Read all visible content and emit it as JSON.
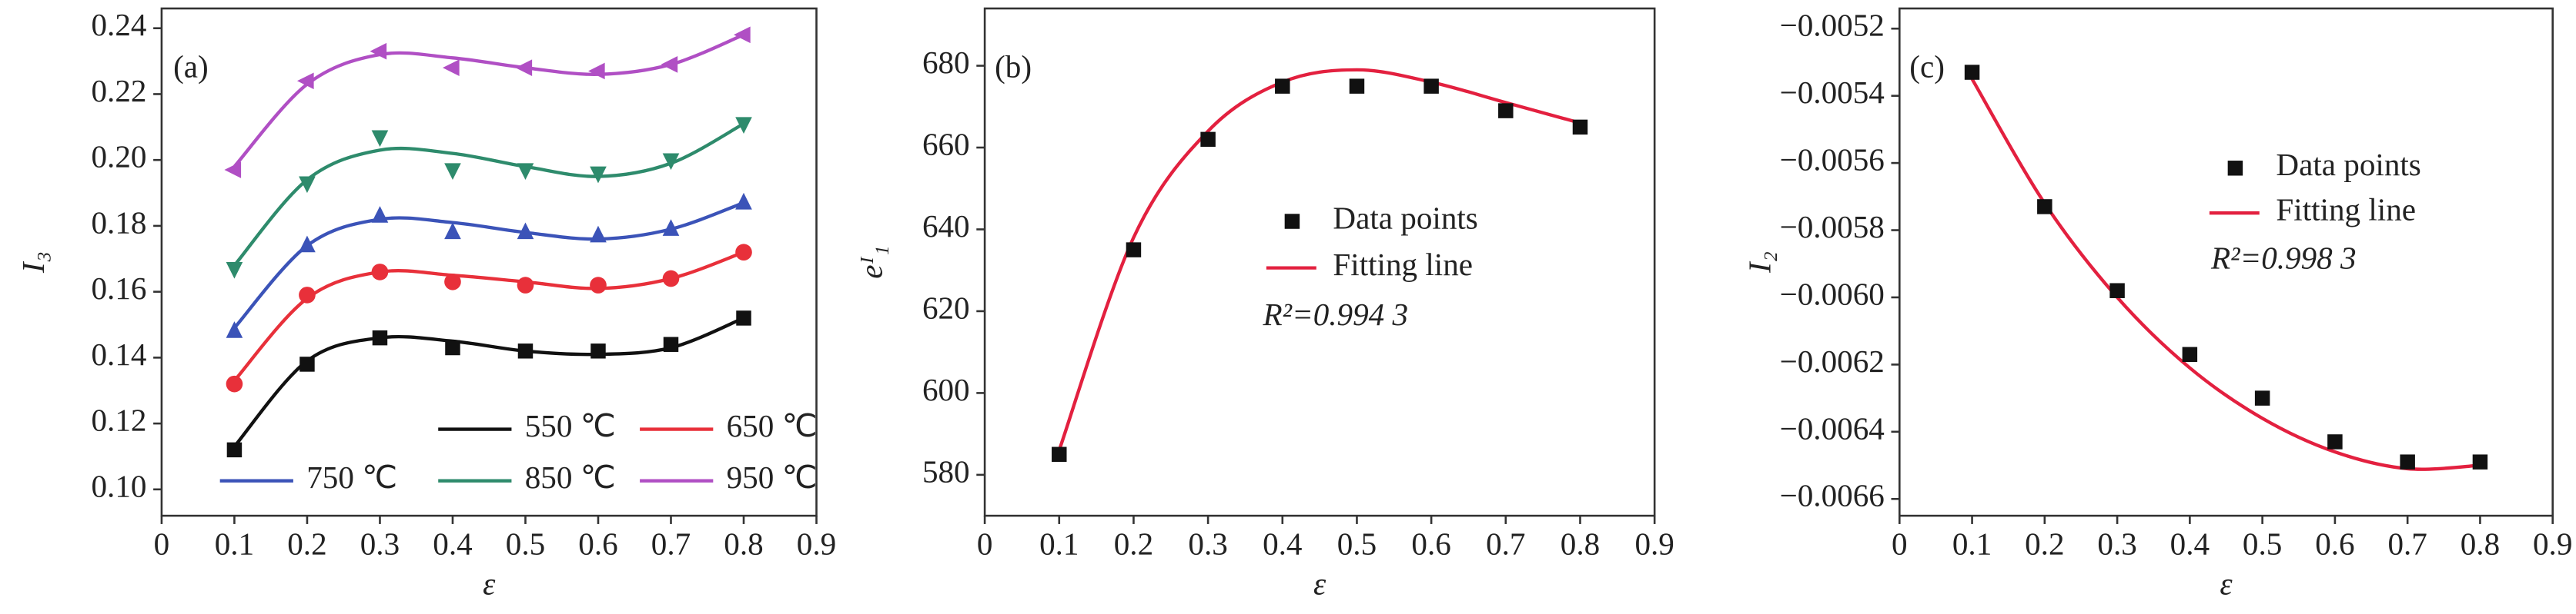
{
  "chart_data": [
    {
      "type": "line",
      "annotation": "(a)",
      "xlabel": "ε",
      "ylabel": "I₃",
      "x": [
        0.1,
        0.2,
        0.3,
        0.4,
        0.5,
        0.6,
        0.7,
        0.8
      ],
      "xlim": [
        0,
        0.9
      ],
      "xticks": [
        0,
        0.1,
        0.2,
        0.3,
        0.4,
        0.5,
        0.6,
        0.7,
        0.8,
        0.9
      ],
      "ylim": [
        0.092,
        0.246
      ],
      "yticks": [
        {
          "value": 0.1,
          "label": "0.10"
        },
        0.12,
        0.14,
        0.16,
        0.18,
        {
          "value": 0.2,
          "label": "0.20"
        },
        0.22,
        0.24
      ],
      "series": [
        {
          "name": "550 ℃",
          "color": "#111111",
          "marker": "square",
          "values": [
            0.112,
            0.138,
            0.146,
            0.143,
            0.142,
            0.142,
            0.144,
            0.152
          ],
          "fit": [
            0.113,
            0.139,
            0.146,
            0.145,
            0.142,
            0.141,
            0.143,
            0.152
          ]
        },
        {
          "name": "650 ℃",
          "color": "#e8303a",
          "marker": "circle",
          "values": [
            0.132,
            0.159,
            0.166,
            0.163,
            0.162,
            0.162,
            0.164,
            0.172
          ],
          "fit": [
            0.133,
            0.158,
            0.166,
            0.165,
            0.163,
            0.161,
            0.164,
            0.172
          ]
        },
        {
          "name": "750 ℃",
          "color": "#3b53b8",
          "marker": "triangle-up",
          "values": [
            0.148,
            0.174,
            0.183,
            0.178,
            0.178,
            0.177,
            0.179,
            0.187
          ],
          "fit": [
            0.149,
            0.174,
            0.182,
            0.181,
            0.178,
            0.176,
            0.179,
            0.187
          ]
        },
        {
          "name": "850 ℃",
          "color": "#2e8b6c",
          "marker": "triangle-down",
          "values": [
            0.167,
            0.193,
            0.207,
            0.197,
            0.197,
            0.196,
            0.2,
            0.211
          ],
          "fit": [
            0.168,
            0.194,
            0.203,
            0.202,
            0.198,
            0.195,
            0.199,
            0.211
          ]
        },
        {
          "name": "950 ℃",
          "color": "#b04fc4",
          "marker": "triangle-left",
          "values": [
            0.197,
            0.224,
            0.233,
            0.228,
            0.228,
            0.227,
            0.229,
            0.238
          ],
          "fit": [
            0.198,
            0.223,
            0.232,
            0.231,
            0.228,
            0.226,
            0.229,
            0.238
          ]
        }
      ]
    },
    {
      "type": "line",
      "annotation": "(b)",
      "xlabel": "ε",
      "ylabel": "eᴵ₁",
      "r2": "R²=0.994 3",
      "x": [
        0.1,
        0.2,
        0.3,
        0.4,
        0.5,
        0.6,
        0.7,
        0.8
      ],
      "xlim": [
        0,
        0.9
      ],
      "xticks": [
        0,
        0.1,
        0.2,
        0.3,
        0.4,
        0.5,
        0.6,
        0.7,
        0.8,
        0.9
      ],
      "ylim": [
        570,
        694
      ],
      "yticks": [
        580,
        600,
        620,
        640,
        660,
        680
      ],
      "series": [
        {
          "name": "Data points",
          "color": "#111111",
          "marker": "square",
          "values": [
            585,
            635,
            662,
            675,
            675,
            675,
            669,
            665
          ]
        },
        {
          "name": "Fitting line",
          "color": "#e3203f",
          "values": [
            586,
            638,
            664,
            676,
            679,
            676,
            671,
            666
          ]
        }
      ]
    },
    {
      "type": "line",
      "annotation": "(c)",
      "xlabel": "ε",
      "ylabel": "I₂",
      "r2": "R²=0.998 3",
      "x": [
        0.1,
        0.2,
        0.3,
        0.4,
        0.5,
        0.6,
        0.7,
        0.8
      ],
      "xlim": [
        0,
        0.9
      ],
      "xticks": [
        0,
        0.1,
        0.2,
        0.3,
        0.4,
        0.5,
        0.6,
        0.7,
        0.8,
        0.9
      ],
      "ylim": [
        -0.00665,
        -0.00514
      ],
      "yticks": [
        {
          "value": -0.0066,
          "label": "−0.0066"
        },
        {
          "value": -0.0064,
          "label": "−0.0064"
        },
        {
          "value": -0.0062,
          "label": "−0.0062"
        },
        {
          "value": -0.006,
          "label": "−0.0060"
        },
        {
          "value": -0.0058,
          "label": "−0.0058"
        },
        {
          "value": -0.0056,
          "label": "−0.0056"
        },
        {
          "value": -0.0054,
          "label": "−0.0054"
        },
        {
          "value": -0.0052,
          "label": "−0.0052"
        }
      ],
      "series": [
        {
          "name": "Data points",
          "color": "#111111",
          "marker": "square",
          "values": [
            -0.00533,
            -0.00573,
            -0.00598,
            -0.00617,
            -0.0063,
            -0.00643,
            -0.00649,
            -0.00649
          ]
        },
        {
          "name": "Fitting line",
          "color": "#e3203f",
          "values": [
            -0.00535,
            -0.00572,
            -0.006,
            -0.00621,
            -0.00636,
            -0.00646,
            -0.00651,
            -0.0065
          ]
        }
      ]
    }
  ]
}
